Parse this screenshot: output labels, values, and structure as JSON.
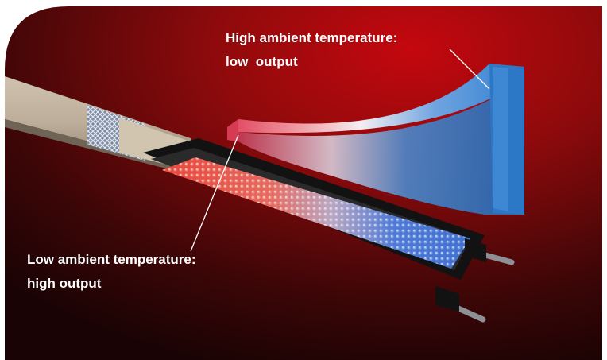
{
  "labels": {
    "high_ambient": {
      "line1": "High ambient temperature:",
      "line2": "low  output"
    },
    "low_ambient": {
      "line1": "Low ambient temperature:",
      "line2": "high output"
    }
  },
  "colors": {
    "background_bright": "#c4080e",
    "background_dark": "#1a0304",
    "cable_jacket": "#bcae9a",
    "braid": "#9aa5b8",
    "matrix_hot": "#e8463a",
    "matrix_cold": "#3f6fd0",
    "curve_warm": "#e0405a",
    "curve_cool": "#3b8ad6",
    "text": "#ffffff"
  }
}
